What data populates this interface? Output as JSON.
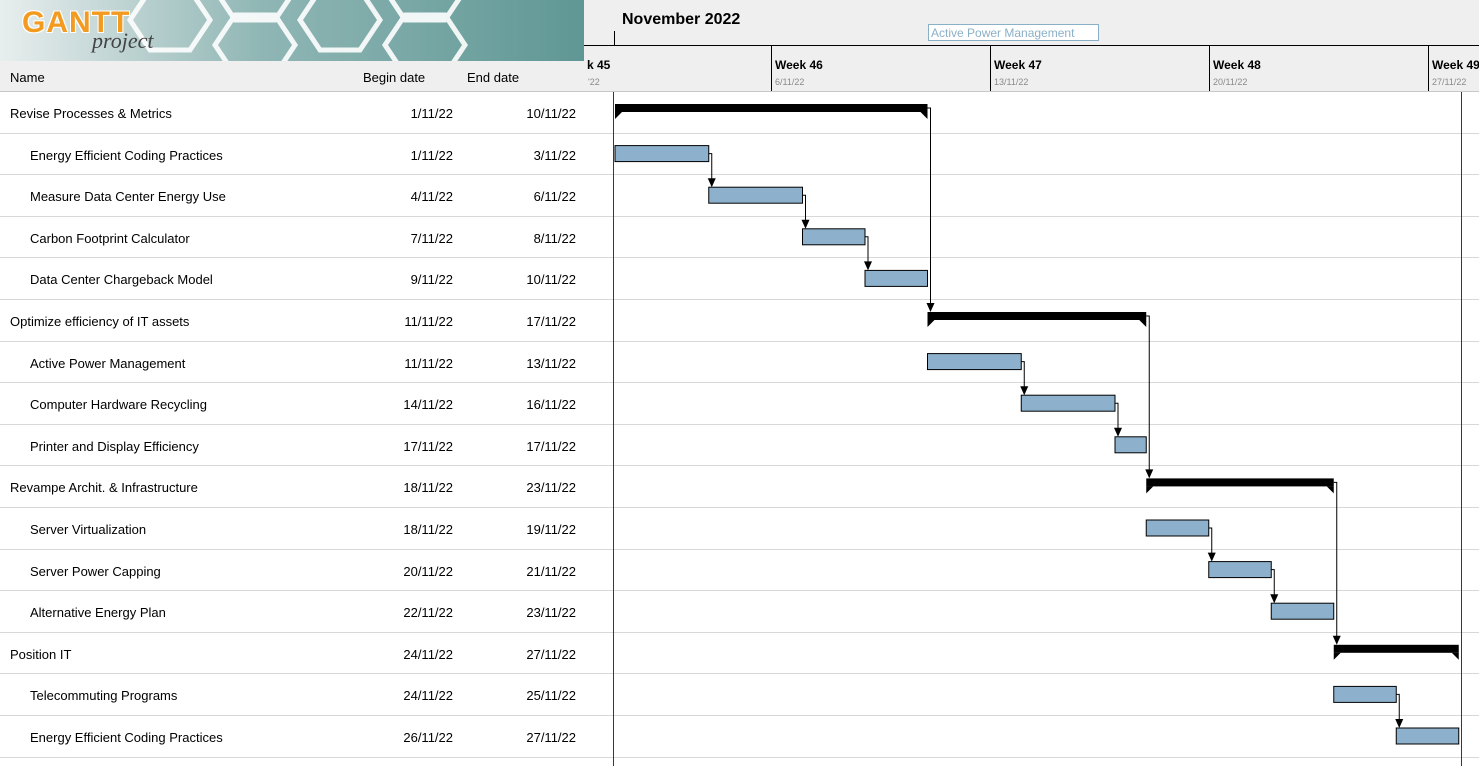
{
  "logo": {
    "main": "GANTT",
    "sub": "project"
  },
  "columns": {
    "name": "Name",
    "begin": "Begin date",
    "end": "End date"
  },
  "timeline": {
    "month": "November 2022",
    "weeks": [
      {
        "label": "k 45",
        "date": "'22"
      },
      {
        "label": "Week 46",
        "date": "6/11/22"
      },
      {
        "label": "Week 47",
        "date": "13/11/22"
      },
      {
        "label": "Week 48",
        "date": "20/11/22"
      },
      {
        "label": "Week 49",
        "date": "27/11/22"
      }
    ],
    "tooltip": "Active Power Management"
  },
  "tasks": [
    {
      "name": "Revise Processes & Metrics",
      "begin": "1/11/22",
      "end": "10/11/22",
      "level": 0,
      "start_day": 1,
      "end_day": 10
    },
    {
      "name": "Energy Efficient Coding Practices",
      "begin": "1/11/22",
      "end": "3/11/22",
      "level": 1,
      "start_day": 1,
      "end_day": 3
    },
    {
      "name": "Measure Data Center Energy Use",
      "begin": "4/11/22",
      "end": "6/11/22",
      "level": 1,
      "start_day": 4,
      "end_day": 6
    },
    {
      "name": "Carbon Footprint Calculator",
      "begin": "7/11/22",
      "end": "8/11/22",
      "level": 1,
      "start_day": 7,
      "end_day": 8
    },
    {
      "name": "Data Center Chargeback Model",
      "begin": "9/11/22",
      "end": "10/11/22",
      "level": 1,
      "start_day": 9,
      "end_day": 10
    },
    {
      "name": "Optimize efficiency of IT assets",
      "begin": "11/11/22",
      "end": "17/11/22",
      "level": 0,
      "start_day": 11,
      "end_day": 17
    },
    {
      "name": "Active Power Management",
      "begin": "11/11/22",
      "end": "13/11/22",
      "level": 1,
      "start_day": 11,
      "end_day": 13
    },
    {
      "name": "Computer Hardware Recycling",
      "begin": "14/11/22",
      "end": "16/11/22",
      "level": 1,
      "start_day": 14,
      "end_day": 16
    },
    {
      "name": "Printer and Display Efficiency",
      "begin": "17/11/22",
      "end": "17/11/22",
      "level": 1,
      "start_day": 17,
      "end_day": 17
    },
    {
      "name": "Revampe Archit. & Infrastructure",
      "begin": "18/11/22",
      "end": "23/11/22",
      "level": 0,
      "start_day": 18,
      "end_day": 23
    },
    {
      "name": "Server Virtualization",
      "begin": "18/11/22",
      "end": "19/11/22",
      "level": 1,
      "start_day": 18,
      "end_day": 19
    },
    {
      "name": "Server Power Capping",
      "begin": "20/11/22",
      "end": "21/11/22",
      "level": 1,
      "start_day": 20,
      "end_day": 21
    },
    {
      "name": "Alternative Energy Plan",
      "begin": "22/11/22",
      "end": "23/11/22",
      "level": 1,
      "start_day": 22,
      "end_day": 23
    },
    {
      "name": "Position IT",
      "begin": "24/11/22",
      "end": "27/11/22",
      "level": 0,
      "start_day": 24,
      "end_day": 27
    },
    {
      "name": "Telecommuting Programs",
      "begin": "24/11/22",
      "end": "25/11/22",
      "level": 1,
      "start_day": 24,
      "end_day": 25
    },
    {
      "name": "Energy Efficient Coding Practices",
      "begin": "26/11/22",
      "end": "27/11/22",
      "level": 1,
      "start_day": 26,
      "end_day": 27
    }
  ],
  "colors": {
    "task_bar": "#8db1cc",
    "summary_bar": "#000000",
    "today_line": "#1f2fa8",
    "logo_bg": "#6a9c9a",
    "logo_text": "#f39a21"
  }
}
